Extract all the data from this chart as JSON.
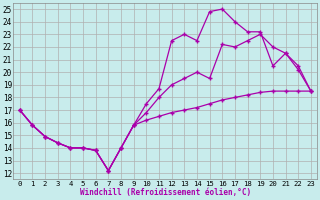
{
  "xlabel": "Windchill (Refroidissement éolien,°C)",
  "bg_color": "#c8ecec",
  "grid_color": "#b0b0b0",
  "line_color": "#aa00aa",
  "xlim": [
    -0.5,
    23.5
  ],
  "ylim": [
    11.5,
    25.5
  ],
  "xticks": [
    0,
    1,
    2,
    3,
    4,
    5,
    6,
    7,
    8,
    9,
    10,
    11,
    12,
    13,
    14,
    15,
    16,
    17,
    18,
    19,
    20,
    21,
    22,
    23
  ],
  "yticks": [
    12,
    13,
    14,
    15,
    16,
    17,
    18,
    19,
    20,
    21,
    22,
    23,
    24,
    25
  ],
  "line1_x": [
    0,
    1,
    2,
    3,
    4,
    5,
    6,
    7,
    8,
    9,
    10,
    11,
    12,
    13,
    14,
    15,
    16,
    17,
    18,
    19,
    20,
    21,
    22,
    23
  ],
  "line1_y": [
    17.0,
    15.8,
    14.9,
    14.4,
    14.0,
    14.0,
    13.8,
    12.2,
    14.0,
    15.8,
    17.5,
    18.7,
    22.5,
    23.0,
    22.5,
    24.8,
    25.0,
    24.0,
    23.2,
    23.2,
    20.5,
    21.5,
    20.2,
    18.5
  ],
  "line2_x": [
    0,
    1,
    2,
    3,
    4,
    5,
    6,
    7,
    8,
    9,
    10,
    11,
    12,
    13,
    14,
    15,
    16,
    17,
    18,
    19,
    20,
    21,
    22,
    23
  ],
  "line2_y": [
    17.0,
    15.8,
    14.9,
    14.4,
    14.0,
    14.0,
    13.8,
    12.2,
    14.0,
    15.8,
    16.2,
    16.5,
    16.8,
    17.0,
    17.2,
    17.5,
    17.8,
    18.0,
    18.2,
    18.4,
    18.5,
    18.5,
    18.5,
    18.5
  ],
  "line3_x": [
    0,
    1,
    2,
    3,
    4,
    5,
    6,
    7,
    8,
    9,
    10,
    11,
    12,
    13,
    14,
    15,
    16,
    17,
    18,
    19,
    20,
    21,
    22,
    23
  ],
  "line3_y": [
    17.0,
    15.8,
    14.9,
    14.4,
    14.0,
    14.0,
    13.8,
    12.2,
    14.0,
    15.8,
    16.8,
    18.0,
    19.0,
    19.5,
    20.0,
    19.5,
    22.2,
    22.0,
    22.5,
    23.0,
    22.0,
    21.5,
    20.5,
    18.5
  ]
}
